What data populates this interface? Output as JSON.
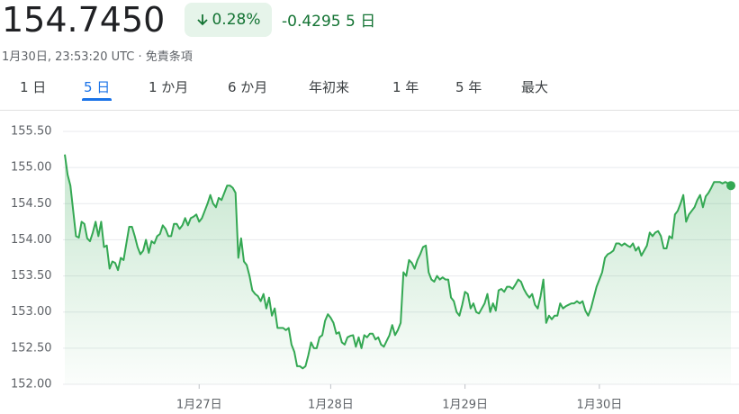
{
  "header": {
    "price": "154.7450",
    "change_pct": "0.28%",
    "change": "-0.4295",
    "period": "5 日",
    "timestamp": "1月30日, 23:53:20 UTC",
    "separator": "·",
    "disclaimer": "免責条項"
  },
  "tabs": [
    "1 日",
    "5 日",
    "1 か月",
    "6 か月",
    "年初来",
    "1 年",
    "5 年",
    "最大"
  ],
  "active_tab": 1,
  "chart_data": {
    "type": "line",
    "color": "#34a853",
    "grid": true,
    "ylim": [
      152.0,
      155.5
    ],
    "yticks": [
      {
        "value": 152,
        "label": "152.00"
      },
      {
        "value": 152.5,
        "label": "152.50"
      },
      {
        "value": 153,
        "label": "153.00"
      },
      {
        "value": 153.5,
        "label": "153.50"
      },
      {
        "value": 154,
        "label": "154.00"
      },
      {
        "value": 154.5,
        "label": "154.50"
      },
      {
        "value": 155,
        "label": "155.00"
      },
      {
        "value": 155.5,
        "label": "155.50"
      }
    ],
    "categories": [
      null,
      null,
      null,
      null,
      null,
      null,
      null,
      null,
      null,
      null,
      null,
      null,
      null,
      null,
      null,
      null,
      null,
      null,
      null,
      null,
      null,
      null,
      null,
      null,
      null,
      null,
      null,
      null,
      null,
      null,
      null,
      null,
      null,
      null,
      null,
      null,
      null,
      null,
      null,
      null,
      null,
      null,
      null,
      null,
      null,
      null,
      null,
      null,
      "1月27日",
      null,
      null,
      null,
      null,
      null,
      null,
      null,
      null,
      null,
      null,
      null,
      null,
      null,
      null,
      null,
      null,
      null,
      null,
      null,
      null,
      null,
      null,
      null,
      null,
      null,
      null,
      null,
      null,
      null,
      null,
      null,
      null,
      null,
      null,
      null,
      null,
      null,
      null,
      null,
      null,
      null,
      null,
      null,
      null,
      null,
      null,
      "1月28日",
      null,
      null,
      null,
      null,
      null,
      null,
      null,
      null,
      null,
      null,
      null,
      null,
      null,
      null,
      null,
      null,
      null,
      null,
      null,
      null,
      null,
      null,
      null,
      null,
      null,
      null,
      null,
      null,
      null,
      null,
      null,
      null,
      null,
      null,
      null,
      null,
      null,
      null,
      null,
      null,
      null,
      null,
      null,
      null,
      null,
      null,
      null,
      "1月29日",
      null,
      null,
      null,
      null,
      null,
      null,
      null,
      null,
      null,
      null,
      null,
      null,
      null,
      null,
      null,
      null,
      null,
      null,
      null,
      null,
      null,
      null,
      null,
      null,
      null,
      null,
      null,
      null,
      null,
      null,
      null,
      null,
      null,
      null,
      null,
      null,
      null,
      null,
      null,
      null,
      null,
      null,
      null,
      null,
      null,
      null,
      null,
      "1月30日",
      null,
      null,
      null,
      null,
      null,
      null,
      null,
      null,
      null,
      null,
      null,
      null,
      null,
      null,
      null,
      null,
      null,
      null,
      null,
      null,
      null,
      null,
      null,
      null,
      null,
      null,
      null,
      null,
      null,
      null,
      null,
      null,
      null,
      null,
      null,
      null,
      null,
      null,
      null,
      null,
      null,
      null,
      null,
      null,
      null,
      null,
      null
    ],
    "values": [
      155.18,
      154.9,
      154.75,
      154.4,
      154.05,
      154.03,
      154.25,
      154.22,
      154.02,
      153.98,
      154.1,
      154.25,
      154.05,
      154.25,
      153.9,
      153.92,
      153.6,
      153.7,
      153.68,
      153.58,
      153.75,
      153.72,
      153.95,
      154.18,
      154.18,
      154.05,
      153.9,
      153.8,
      153.85,
      154.0,
      153.82,
      153.98,
      153.95,
      154.05,
      154.08,
      154.2,
      154.15,
      154.05,
      154.05,
      154.22,
      154.22,
      154.15,
      154.2,
      154.3,
      154.2,
      154.3,
      154.32,
      154.35,
      154.25,
      154.3,
      154.4,
      154.5,
      154.62,
      154.5,
      154.45,
      154.58,
      154.55,
      154.65,
      154.75,
      154.75,
      154.72,
      154.65,
      153.75,
      154.02,
      153.7,
      153.65,
      153.5,
      153.3,
      153.25,
      153.22,
      153.15,
      153.25,
      153.05,
      153.2,
      152.95,
      153.05,
      152.78,
      152.78,
      152.78,
      152.75,
      152.78,
      152.55,
      152.45,
      152.25,
      152.25,
      152.22,
      152.25,
      152.4,
      152.58,
      152.5,
      152.5,
      152.65,
      152.68,
      152.88,
      152.97,
      152.92,
      152.85,
      152.7,
      152.72,
      152.58,
      152.55,
      152.65,
      152.67,
      152.68,
      152.52,
      152.65,
      152.5,
      152.68,
      152.65,
      152.7,
      152.7,
      152.62,
      152.65,
      152.55,
      152.52,
      152.6,
      152.68,
      152.82,
      152.68,
      152.75,
      152.85,
      153.55,
      153.5,
      153.72,
      153.68,
      153.6,
      153.72,
      153.8,
      153.9,
      153.92,
      153.55,
      153.45,
      153.42,
      153.5,
      153.45,
      153.48,
      153.45,
      153.45,
      153.2,
      153.15,
      153.0,
      152.95,
      153.1,
      153.28,
      153.25,
      153.05,
      153.12,
      153.0,
      152.98,
      153.05,
      153.12,
      153.25,
      153.0,
      153.12,
      153.02,
      153.3,
      153.32,
      153.28,
      153.35,
      153.35,
      153.32,
      153.38,
      153.45,
      153.42,
      153.32,
      153.25,
      153.2,
      153.25,
      153.1,
      153.05,
      153.22,
      153.45,
      152.85,
      152.95,
      152.9,
      152.95,
      152.95,
      153.12,
      153.05,
      153.08,
      153.1,
      153.12,
      153.12,
      153.15,
      153.12,
      153.15,
      153.02,
      152.95,
      153.05,
      153.2,
      153.35,
      153.45,
      153.55,
      153.75,
      153.8,
      153.82,
      153.85,
      153.95,
      153.95,
      153.92,
      153.95,
      153.92,
      153.9,
      153.95,
      153.85,
      153.9,
      153.78,
      153.85,
      153.92,
      154.1,
      154.05,
      154.1,
      154.12,
      154.05,
      153.88,
      153.88,
      154.05,
      154.02,
      154.35,
      154.4,
      154.5,
      154.62,
      154.25,
      154.35,
      154.4,
      154.45,
      154.55,
      154.62,
      154.45,
      154.6,
      154.65,
      154.72,
      154.8,
      154.8,
      154.8,
      154.78,
      154.8,
      154.78,
      154.75
    ]
  }
}
